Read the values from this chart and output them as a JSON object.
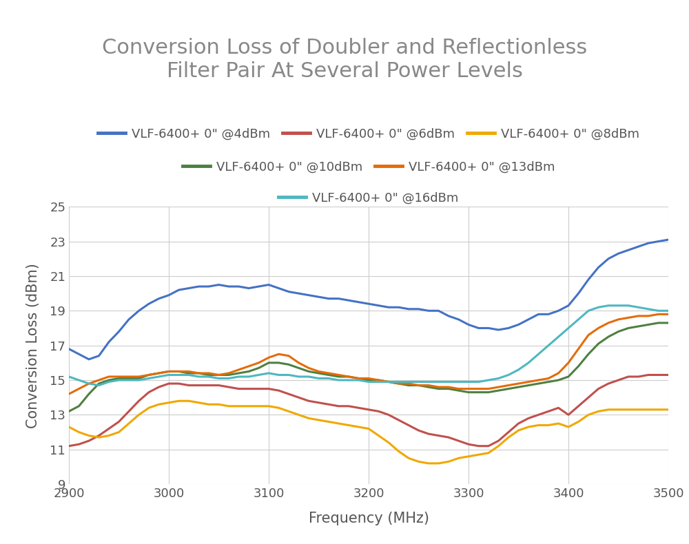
{
  "title": "Conversion Loss of Doubler and Reflectionless\nFilter Pair At Several Power Levels",
  "xlabel": "Frequency (MHz)",
  "ylabel": "Conversion Loss (dBm)",
  "xlim": [
    2900,
    3500
  ],
  "ylim": [
    9,
    25
  ],
  "yticks": [
    9,
    11,
    13,
    15,
    17,
    19,
    21,
    23,
    25
  ],
  "xticks": [
    2900,
    3000,
    3100,
    3200,
    3300,
    3400,
    3500
  ],
  "background_color": "#ffffff",
  "grid_color": "#cccccc",
  "title_color": "#888888",
  "title_fontsize": 22,
  "label_fontsize": 15,
  "tick_fontsize": 13,
  "legend_fontsize": 13,
  "series": [
    {
      "label": "VLF-6400+ 0\" @4dBm",
      "color": "#4472C4",
      "linewidth": 2.2,
      "x": [
        2900,
        2910,
        2920,
        2930,
        2940,
        2950,
        2960,
        2970,
        2980,
        2990,
        3000,
        3010,
        3020,
        3030,
        3040,
        3050,
        3060,
        3070,
        3080,
        3090,
        3100,
        3110,
        3120,
        3130,
        3140,
        3150,
        3160,
        3170,
        3180,
        3190,
        3200,
        3210,
        3220,
        3230,
        3240,
        3250,
        3260,
        3270,
        3280,
        3290,
        3300,
        3310,
        3320,
        3330,
        3340,
        3350,
        3360,
        3370,
        3380,
        3390,
        3400,
        3410,
        3420,
        3430,
        3440,
        3450,
        3460,
        3470,
        3480,
        3490,
        3500
      ],
      "y": [
        16.8,
        16.5,
        16.2,
        16.4,
        17.2,
        17.8,
        18.5,
        19.0,
        19.4,
        19.7,
        19.9,
        20.2,
        20.3,
        20.4,
        20.4,
        20.5,
        20.4,
        20.4,
        20.3,
        20.4,
        20.5,
        20.3,
        20.1,
        20.0,
        19.9,
        19.8,
        19.7,
        19.7,
        19.6,
        19.5,
        19.4,
        19.3,
        19.2,
        19.2,
        19.1,
        19.1,
        19.0,
        19.0,
        18.7,
        18.5,
        18.2,
        18.0,
        18.0,
        17.9,
        18.0,
        18.2,
        18.5,
        18.8,
        18.8,
        19.0,
        19.3,
        20.0,
        20.8,
        21.5,
        22.0,
        22.3,
        22.5,
        22.7,
        22.9,
        23.0,
        23.1
      ]
    },
    {
      "label": "VLF-6400+ 0\" @6dBm",
      "color": "#C0504D",
      "linewidth": 2.2,
      "x": [
        2900,
        2910,
        2920,
        2930,
        2940,
        2950,
        2960,
        2970,
        2980,
        2990,
        3000,
        3010,
        3020,
        3030,
        3040,
        3050,
        3060,
        3070,
        3080,
        3090,
        3100,
        3110,
        3120,
        3130,
        3140,
        3150,
        3160,
        3170,
        3180,
        3190,
        3200,
        3210,
        3220,
        3230,
        3240,
        3250,
        3260,
        3270,
        3280,
        3290,
        3300,
        3310,
        3320,
        3330,
        3340,
        3350,
        3360,
        3370,
        3380,
        3390,
        3400,
        3410,
        3420,
        3430,
        3440,
        3450,
        3460,
        3470,
        3480,
        3490,
        3500
      ],
      "y": [
        11.2,
        11.3,
        11.5,
        11.8,
        12.2,
        12.6,
        13.2,
        13.8,
        14.3,
        14.6,
        14.8,
        14.8,
        14.7,
        14.7,
        14.7,
        14.7,
        14.6,
        14.5,
        14.5,
        14.5,
        14.5,
        14.4,
        14.2,
        14.0,
        13.8,
        13.7,
        13.6,
        13.5,
        13.5,
        13.4,
        13.3,
        13.2,
        13.0,
        12.7,
        12.4,
        12.1,
        11.9,
        11.8,
        11.7,
        11.5,
        11.3,
        11.2,
        11.2,
        11.5,
        12.0,
        12.5,
        12.8,
        13.0,
        13.2,
        13.4,
        13.0,
        13.5,
        14.0,
        14.5,
        14.8,
        15.0,
        15.2,
        15.2,
        15.3,
        15.3,
        15.3
      ]
    },
    {
      "label": "VLF-6400+ 0\" @8dBm",
      "color": "#F0A800",
      "linewidth": 2.2,
      "x": [
        2900,
        2910,
        2920,
        2930,
        2940,
        2950,
        2960,
        2970,
        2980,
        2990,
        3000,
        3010,
        3020,
        3030,
        3040,
        3050,
        3060,
        3070,
        3080,
        3090,
        3100,
        3110,
        3120,
        3130,
        3140,
        3150,
        3160,
        3170,
        3180,
        3190,
        3200,
        3210,
        3220,
        3230,
        3240,
        3250,
        3260,
        3270,
        3280,
        3290,
        3300,
        3310,
        3320,
        3330,
        3340,
        3350,
        3360,
        3370,
        3380,
        3390,
        3400,
        3410,
        3420,
        3430,
        3440,
        3450,
        3460,
        3470,
        3480,
        3490,
        3500
      ],
      "y": [
        12.3,
        12.0,
        11.8,
        11.7,
        11.8,
        12.0,
        12.5,
        13.0,
        13.4,
        13.6,
        13.7,
        13.8,
        13.8,
        13.7,
        13.6,
        13.6,
        13.5,
        13.5,
        13.5,
        13.5,
        13.5,
        13.4,
        13.2,
        13.0,
        12.8,
        12.7,
        12.6,
        12.5,
        12.4,
        12.3,
        12.2,
        11.8,
        11.4,
        10.9,
        10.5,
        10.3,
        10.2,
        10.2,
        10.3,
        10.5,
        10.6,
        10.7,
        10.8,
        11.2,
        11.7,
        12.1,
        12.3,
        12.4,
        12.4,
        12.5,
        12.3,
        12.6,
        13.0,
        13.2,
        13.3,
        13.3,
        13.3,
        13.3,
        13.3,
        13.3,
        13.3
      ]
    },
    {
      "label": "VLF-6400+ 0\" @10dBm",
      "color": "#4E8040",
      "linewidth": 2.2,
      "x": [
        2900,
        2910,
        2920,
        2930,
        2940,
        2950,
        2960,
        2970,
        2980,
        2990,
        3000,
        3010,
        3020,
        3030,
        3040,
        3050,
        3060,
        3070,
        3080,
        3090,
        3100,
        3110,
        3120,
        3130,
        3140,
        3150,
        3160,
        3170,
        3180,
        3190,
        3200,
        3210,
        3220,
        3230,
        3240,
        3250,
        3260,
        3270,
        3280,
        3290,
        3300,
        3310,
        3320,
        3330,
        3340,
        3350,
        3360,
        3370,
        3380,
        3390,
        3400,
        3410,
        3420,
        3430,
        3440,
        3450,
        3460,
        3470,
        3480,
        3490,
        3500
      ],
      "y": [
        13.2,
        13.5,
        14.2,
        14.8,
        15.0,
        15.1,
        15.1,
        15.1,
        15.3,
        15.4,
        15.5,
        15.5,
        15.4,
        15.4,
        15.3,
        15.3,
        15.3,
        15.4,
        15.5,
        15.7,
        16.0,
        16.0,
        15.9,
        15.7,
        15.5,
        15.4,
        15.3,
        15.2,
        15.2,
        15.1,
        15.0,
        15.0,
        14.9,
        14.8,
        14.7,
        14.7,
        14.6,
        14.5,
        14.5,
        14.4,
        14.3,
        14.3,
        14.3,
        14.4,
        14.5,
        14.6,
        14.7,
        14.8,
        14.9,
        15.0,
        15.2,
        15.8,
        16.5,
        17.1,
        17.5,
        17.8,
        18.0,
        18.1,
        18.2,
        18.3,
        18.3
      ]
    },
    {
      "label": "VLF-6400+ 0\" @13dBm",
      "color": "#E36C09",
      "linewidth": 2.2,
      "x": [
        2900,
        2910,
        2920,
        2930,
        2940,
        2950,
        2960,
        2970,
        2980,
        2990,
        3000,
        3010,
        3020,
        3030,
        3040,
        3050,
        3060,
        3070,
        3080,
        3090,
        3100,
        3110,
        3120,
        3130,
        3140,
        3150,
        3160,
        3170,
        3180,
        3190,
        3200,
        3210,
        3220,
        3230,
        3240,
        3250,
        3260,
        3270,
        3280,
        3290,
        3300,
        3310,
        3320,
        3330,
        3340,
        3350,
        3360,
        3370,
        3380,
        3390,
        3400,
        3410,
        3420,
        3430,
        3440,
        3450,
        3460,
        3470,
        3480,
        3490,
        3500
      ],
      "y": [
        14.2,
        14.5,
        14.8,
        15.0,
        15.2,
        15.2,
        15.2,
        15.2,
        15.3,
        15.4,
        15.5,
        15.5,
        15.5,
        15.4,
        15.4,
        15.3,
        15.4,
        15.6,
        15.8,
        16.0,
        16.3,
        16.5,
        16.4,
        16.0,
        15.7,
        15.5,
        15.4,
        15.3,
        15.2,
        15.1,
        15.1,
        15.0,
        14.9,
        14.8,
        14.8,
        14.7,
        14.7,
        14.6,
        14.6,
        14.5,
        14.5,
        14.5,
        14.5,
        14.6,
        14.7,
        14.8,
        14.9,
        15.0,
        15.1,
        15.4,
        16.0,
        16.8,
        17.6,
        18.0,
        18.3,
        18.5,
        18.6,
        18.7,
        18.7,
        18.8,
        18.8
      ]
    },
    {
      "label": "VLF-6400+ 0\" @16dBm",
      "color": "#4DB8C0",
      "linewidth": 2.2,
      "x": [
        2900,
        2910,
        2920,
        2930,
        2940,
        2950,
        2960,
        2970,
        2980,
        2990,
        3000,
        3010,
        3020,
        3030,
        3040,
        3050,
        3060,
        3070,
        3080,
        3090,
        3100,
        3110,
        3120,
        3130,
        3140,
        3150,
        3160,
        3170,
        3180,
        3190,
        3200,
        3210,
        3220,
        3230,
        3240,
        3250,
        3260,
        3270,
        3280,
        3290,
        3300,
        3310,
        3320,
        3330,
        3340,
        3350,
        3360,
        3370,
        3380,
        3390,
        3400,
        3410,
        3420,
        3430,
        3440,
        3450,
        3460,
        3470,
        3480,
        3490,
        3500
      ],
      "y": [
        15.2,
        15.0,
        14.8,
        14.7,
        14.9,
        15.0,
        15.0,
        15.0,
        15.1,
        15.2,
        15.3,
        15.3,
        15.3,
        15.2,
        15.2,
        15.1,
        15.1,
        15.2,
        15.2,
        15.3,
        15.4,
        15.3,
        15.3,
        15.2,
        15.2,
        15.1,
        15.1,
        15.0,
        15.0,
        15.0,
        14.9,
        14.9,
        14.9,
        14.9,
        14.9,
        14.9,
        14.9,
        14.9,
        14.9,
        14.9,
        14.9,
        14.9,
        15.0,
        15.1,
        15.3,
        15.6,
        16.0,
        16.5,
        17.0,
        17.5,
        18.0,
        18.5,
        19.0,
        19.2,
        19.3,
        19.3,
        19.3,
        19.2,
        19.1,
        19.0,
        19.0
      ]
    }
  ]
}
